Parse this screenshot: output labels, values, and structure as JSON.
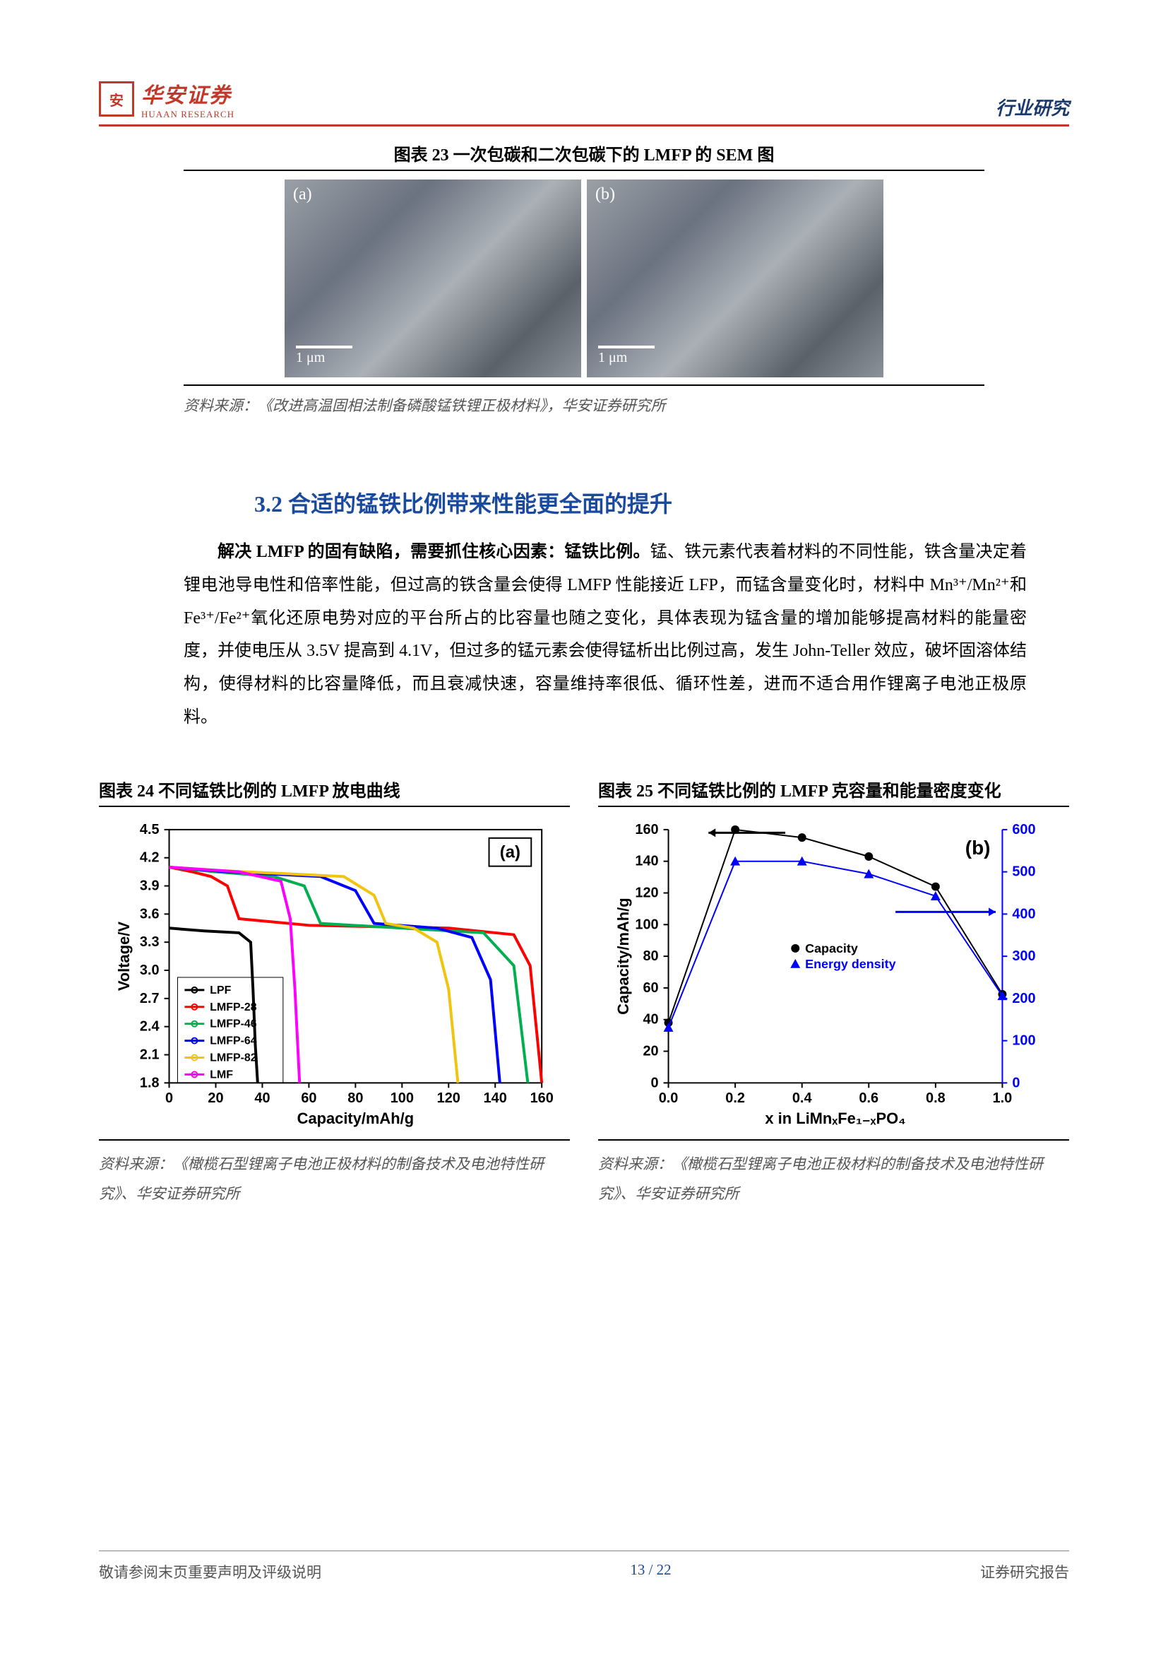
{
  "header": {
    "logo_cn": "华安证券",
    "logo_en": "HUAAN RESEARCH",
    "right": "行业研究",
    "accent_color": "#c0392b"
  },
  "fig23": {
    "title": "图表 23  一次包碳和二次包碳下的 LMFP 的 SEM 图",
    "panel_a": "(a)",
    "panel_b": "(b)",
    "scale": "1 μm",
    "source": "资料来源：《改进高温固相法制备磷酸锰铁锂正极材料》，华安证券研究所"
  },
  "section": {
    "title": "3.2 合适的锰铁比例带来性能更全面的提升",
    "bold_lead": "解决 LMFP 的固有缺陷，需要抓住核心因素：锰铁比例。",
    "body_rest": "锰、铁元素代表着材料的不同性能，铁含量决定着锂电池导电性和倍率性能，但过高的铁含量会使得 LMFP 性能接近 LFP，而锰含量变化时，材料中 Mn³⁺/Mn²⁺和 Fe³⁺/Fe²⁺氧化还原电势对应的平台所占的比容量也随之变化，具体表现为锰含量的增加能够提高材料的能量密度，并使电压从 3.5V 提高到 4.1V，但过多的锰元素会使得锰析出比例过高，发生 John-Teller 效应，破坏固溶体结构，使得材料的比容量降低，而且衰减快速，容量维持率很低、循环性差，进而不适合用作锂离子电池正极原料。"
  },
  "fig24": {
    "title": "图表 24  不同锰铁比例的 LMFP 放电曲线",
    "source": "资料来源：《橄榄石型锂离子电池正极材料的制备技术及电池特性研究》、华安证券研究所",
    "panel_label": "(a)",
    "xlabel": "Capacity/mAh/g",
    "ylabel": "Voltage/V",
    "xlim": [
      0,
      160
    ],
    "xtick_step": 20,
    "ylim": [
      1.8,
      4.5
    ],
    "ytick_step": 0.3,
    "legend": [
      {
        "name": "LPF",
        "color": "#000000",
        "marker": "square"
      },
      {
        "name": "LMFP-28",
        "color": "#ff0000",
        "marker": "circle"
      },
      {
        "name": "LMFP-46",
        "color": "#00b050",
        "marker": "triangle"
      },
      {
        "name": "LMFP-64",
        "color": "#0000ff",
        "marker": "circle"
      },
      {
        "name": "LMFP-82",
        "color": "#f1c40f",
        "marker": "diamond"
      },
      {
        "name": "LMF",
        "color": "#ff00ff",
        "marker": "x"
      }
    ],
    "series": {
      "LPF": [
        [
          0,
          3.45
        ],
        [
          15,
          3.42
        ],
        [
          30,
          3.4
        ],
        [
          35,
          3.3
        ],
        [
          36,
          2.8
        ],
        [
          37,
          2.2
        ],
        [
          38,
          1.8
        ]
      ],
      "LMFP-28": [
        [
          0,
          4.1
        ],
        [
          10,
          4.05
        ],
        [
          18,
          4.0
        ],
        [
          25,
          3.9
        ],
        [
          30,
          3.55
        ],
        [
          60,
          3.48
        ],
        [
          120,
          3.45
        ],
        [
          148,
          3.38
        ],
        [
          155,
          3.05
        ],
        [
          160,
          1.8
        ]
      ],
      "LMFP-46": [
        [
          0,
          4.1
        ],
        [
          20,
          4.05
        ],
        [
          45,
          4.0
        ],
        [
          58,
          3.9
        ],
        [
          65,
          3.5
        ],
        [
          100,
          3.45
        ],
        [
          135,
          3.4
        ],
        [
          148,
          3.05
        ],
        [
          154,
          1.8
        ]
      ],
      "LMFP-64": [
        [
          0,
          4.1
        ],
        [
          25,
          4.05
        ],
        [
          65,
          4.0
        ],
        [
          80,
          3.85
        ],
        [
          88,
          3.5
        ],
        [
          115,
          3.45
        ],
        [
          130,
          3.35
        ],
        [
          138,
          2.9
        ],
        [
          142,
          1.8
        ]
      ],
      "LMFP-82": [
        [
          0,
          4.1
        ],
        [
          25,
          4.06
        ],
        [
          75,
          4.0
        ],
        [
          88,
          3.8
        ],
        [
          93,
          3.5
        ],
        [
          105,
          3.45
        ],
        [
          115,
          3.3
        ],
        [
          120,
          2.8
        ],
        [
          124,
          1.8
        ]
      ],
      "LMF": [
        [
          0,
          4.1
        ],
        [
          30,
          4.05
        ],
        [
          48,
          3.95
        ],
        [
          52,
          3.55
        ],
        [
          54,
          2.8
        ],
        [
          56,
          1.8
        ]
      ]
    }
  },
  "fig25": {
    "title": "图表 25  不同锰铁比例的 LMFP 克容量和能量密度变化",
    "source": "资料来源：《橄榄石型锂离子电池正极材料的制备技术及电池特性研究》、华安证券研究所",
    "panel_label": "(b)",
    "xlabel": "x in LiMnₓFe₁₋ₓPO₄",
    "ylabel_left": "Capacity/mAh/g",
    "ylabel_right_color": "#0000ff",
    "xlim": [
      0.0,
      1.0
    ],
    "xtick_step": 0.2,
    "ylim_left": [
      0,
      160
    ],
    "ytick_left_step": 20,
    "ylim_right": [
      0,
      600
    ],
    "ytick_right_step": 100,
    "legend": [
      {
        "name": "Capacity",
        "color": "#000000",
        "marker": "circle"
      },
      {
        "name": "Energy density",
        "color": "#0000ff",
        "marker": "triangle"
      }
    ],
    "capacity": [
      [
        0.0,
        38
      ],
      [
        0.2,
        160
      ],
      [
        0.4,
        155
      ],
      [
        0.6,
        143
      ],
      [
        0.8,
        124
      ],
      [
        1.0,
        56
      ]
    ],
    "energy": [
      [
        0.0,
        130
      ],
      [
        0.2,
        560
      ],
      [
        0.4,
        560
      ],
      [
        0.6,
        530
      ],
      [
        0.8,
        470
      ],
      [
        1.0,
        220
      ]
    ],
    "energy_on_left_axis": [
      [
        0.0,
        35
      ],
      [
        0.2,
        140
      ],
      [
        0.4,
        140
      ],
      [
        0.6,
        132
      ],
      [
        0.8,
        118
      ],
      [
        1.0,
        55
      ]
    ]
  },
  "footer": {
    "left": "敬请参阅末页重要声明及评级说明",
    "center": "13  /  22",
    "right": "证券研究报告"
  }
}
